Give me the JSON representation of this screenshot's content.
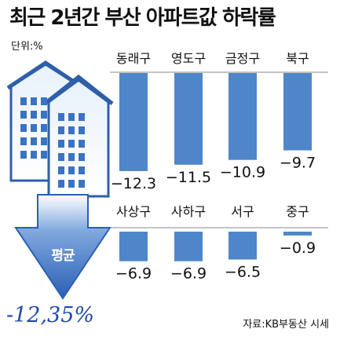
{
  "title": "최근 2년간 부산 아파트값 하락률",
  "unit": "단위:%",
  "average": {
    "label": "평균",
    "value": "-12,35%"
  },
  "source": "자료:KB부동산 시세",
  "colors": {
    "bar": "#4f86c9",
    "accent": "#1e4aa8",
    "arrow": "#3a6fc0"
  },
  "icons": [
    "apartment-building-icon",
    "down-arrow-icon"
  ],
  "chart_data": [
    {
      "type": "bar",
      "categories": [
        "동래구",
        "영도구",
        "금정구",
        "북구"
      ],
      "values": [
        -12.3,
        -11.5,
        -10.9,
        -9.7
      ],
      "labels": [
        "−12.3",
        "−11.5",
        "−10.9",
        "−9.7"
      ],
      "ylim": [
        -13,
        0
      ],
      "grid": false
    },
    {
      "type": "bar",
      "categories": [
        "사상구",
        "사하구",
        "서구",
        "중구"
      ],
      "values": [
        -6.9,
        -6.9,
        -6.5,
        -0.9
      ],
      "labels": [
        "−6.9",
        "−6.9",
        "−6.5",
        "−0.9"
      ],
      "ylim": [
        -13,
        0
      ],
      "grid": false
    }
  ]
}
